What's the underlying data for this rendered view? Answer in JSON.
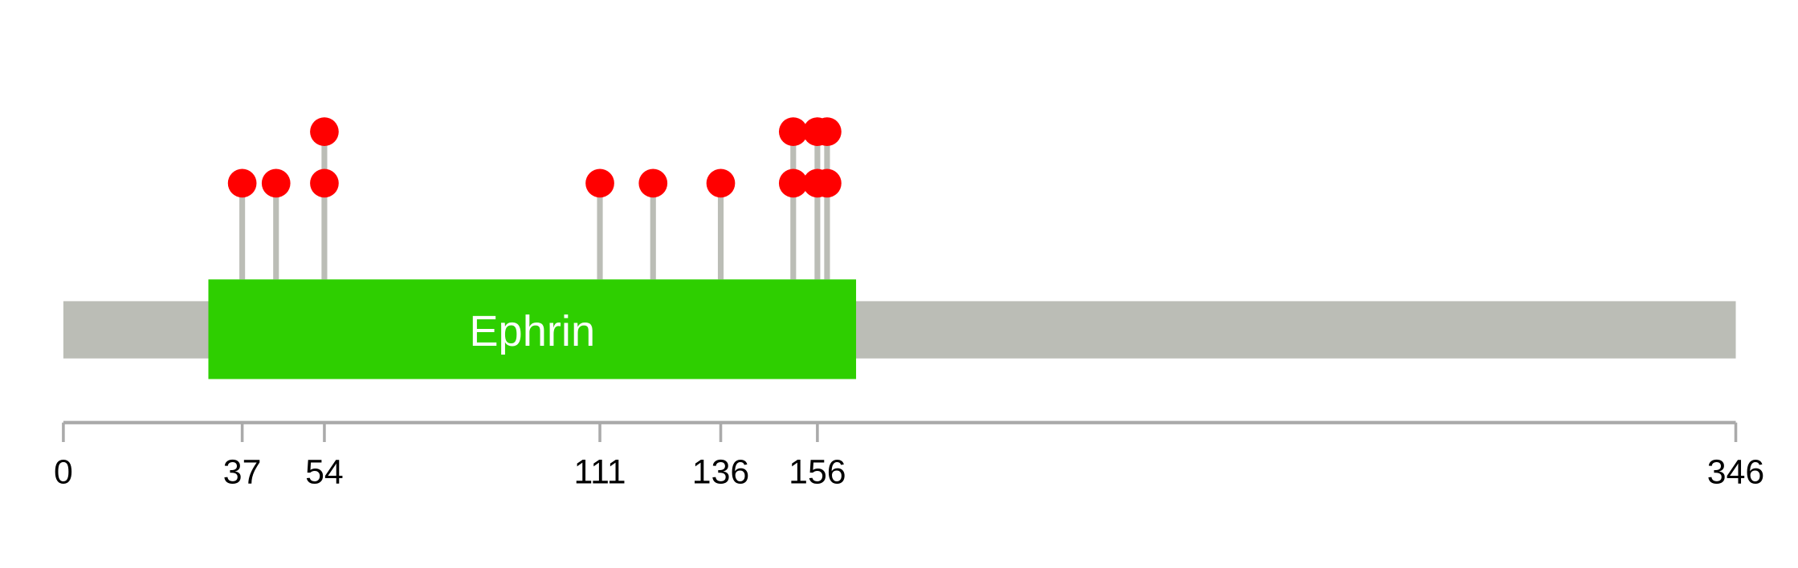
{
  "chart_data": {
    "type": "lollipop",
    "protein_length": 346,
    "axis": {
      "min": 0,
      "max": 346,
      "tick_labels": [
        "0",
        "37",
        "54",
        "111",
        "136",
        "156",
        "346"
      ]
    },
    "domains": [
      {
        "name": "Ephrin",
        "start": 30,
        "end": 164,
        "color": "#2ecf00"
      }
    ],
    "mutations": [
      {
        "position": 37,
        "count": 1
      },
      {
        "position": 44,
        "count": 1
      },
      {
        "position": 54,
        "count": 2
      },
      {
        "position": 111,
        "count": 1
      },
      {
        "position": 122,
        "count": 1
      },
      {
        "position": 136,
        "count": 1
      },
      {
        "position": 151,
        "count": 2
      },
      {
        "position": 156,
        "count": 2
      },
      {
        "position": 158,
        "count": 2
      }
    ],
    "colors": {
      "backbone": "#bbbdb6",
      "stem": "#bbbdb6",
      "dot": "#ff0000",
      "axis": "#aaaaaa",
      "domain_text": "#ffffff"
    }
  }
}
